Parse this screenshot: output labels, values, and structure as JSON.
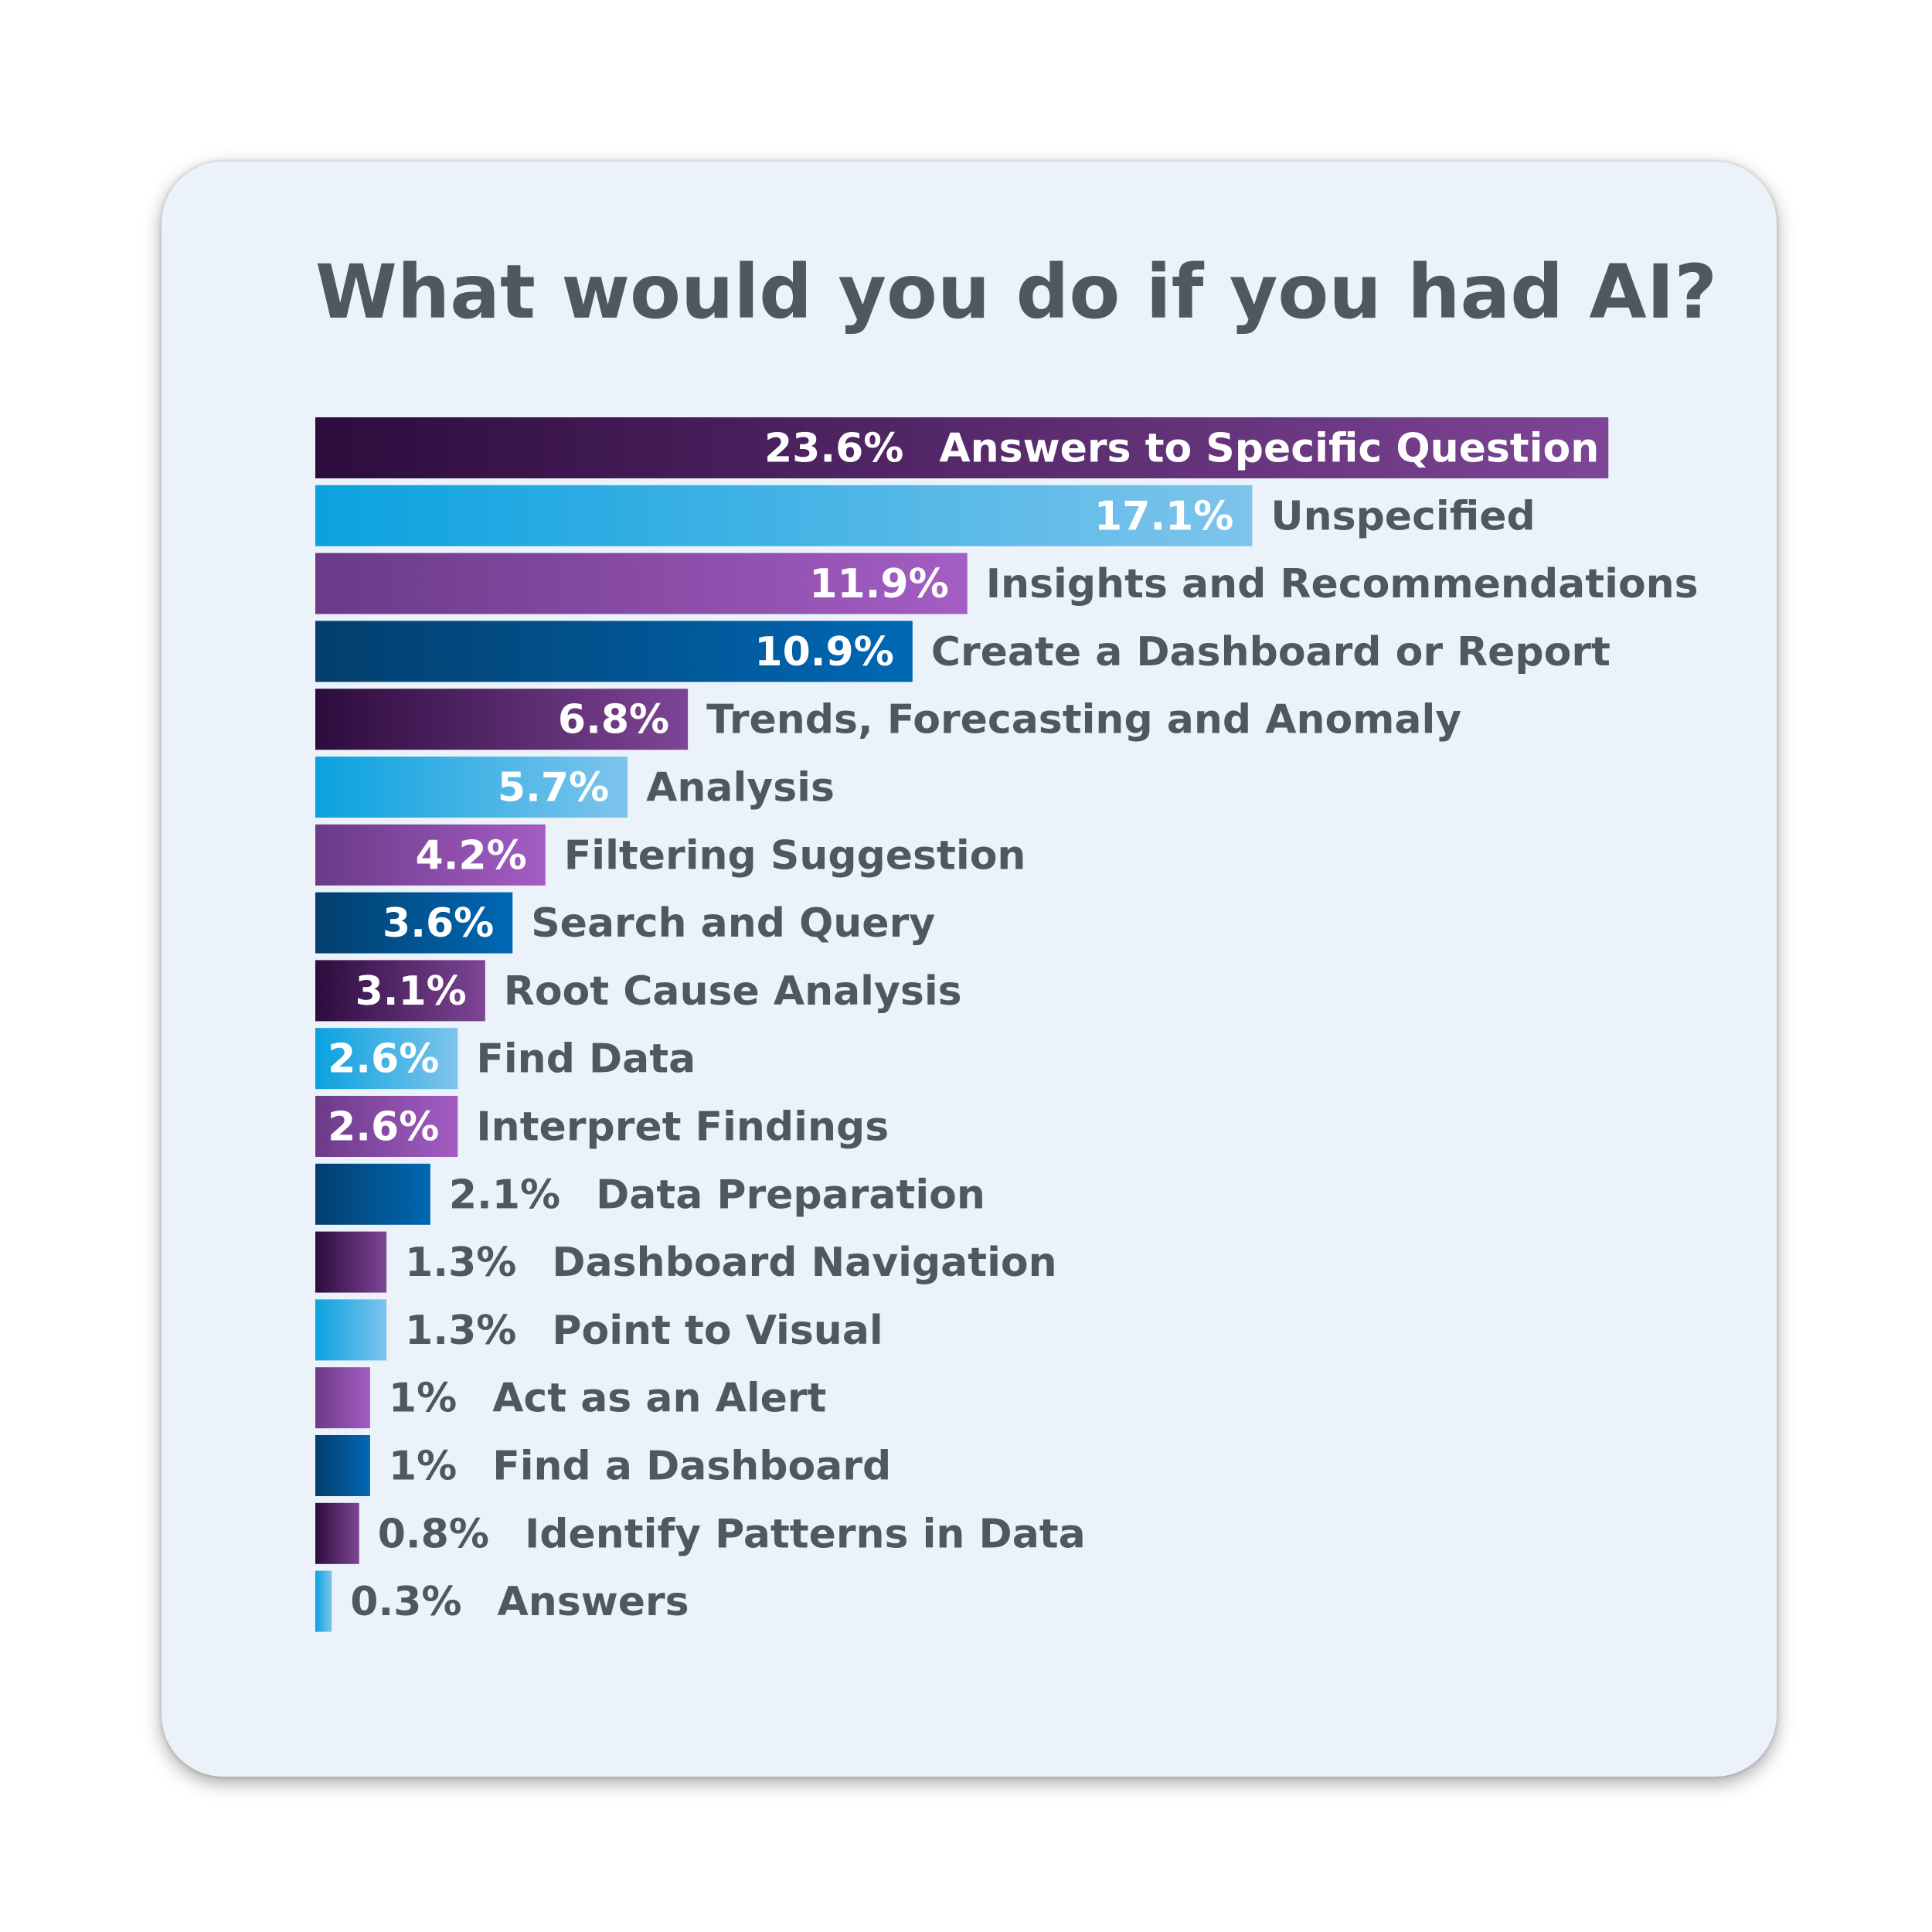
{
  "chart_data": {
    "type": "bar",
    "orientation": "horizontal",
    "title": "What would you do if you had AI?",
    "categories": [
      "Answers to Specific Question",
      "Unspecified",
      "Insights and Recommendations",
      "Create a Dashboard or Report",
      "Trends, Forecasting and Anomaly",
      "Analysis",
      "Filtering Suggestion",
      "Search and Query",
      "Root Cause Analysis",
      "Find Data",
      "Interpret Findings",
      "Data Preparation",
      "Dashboard Navigation",
      "Point to Visual",
      "Act as an Alert",
      "Find a Dashboard",
      "Identify Patterns in Data",
      "Answers"
    ],
    "values": [
      23.6,
      17.1,
      11.9,
      10.9,
      6.8,
      5.7,
      4.2,
      3.6,
      3.1,
      2.6,
      2.6,
      2.1,
      1.3,
      1.3,
      1,
      1,
      0.8,
      0.3
    ],
    "value_labels": [
      "23.6%",
      "17.1%",
      "11.9%",
      "10.9%",
      "6.8%",
      "5.7%",
      "4.2%",
      "3.6%",
      "3.1%",
      "2.6%",
      "2.6%",
      "2.1%",
      "1.3%",
      "1.3%",
      "1%",
      "1%",
      "0.8%",
      "0.3%"
    ],
    "xlabel": "",
    "ylabel": "",
    "grid": false,
    "legend": "none",
    "palette": {
      "dark_purple": [
        "#2d0c3d",
        "#7e4596"
      ],
      "light_blue": [
        "#0aa2df",
        "#7ec4ec"
      ],
      "purple": [
        "#6b3a87",
        "#a45dc4"
      ],
      "dark_blue": [
        "#033e6d",
        "#0068b4"
      ]
    }
  },
  "colors": {
    "title": "#4f5861",
    "label": "#4f5861",
    "value_inside": "#ffffff",
    "card_background": "#ecf2fa"
  }
}
